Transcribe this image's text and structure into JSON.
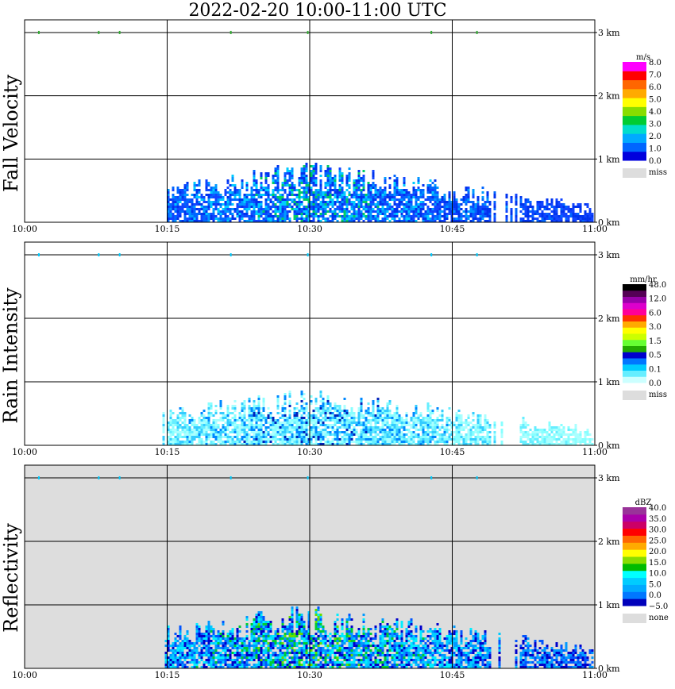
{
  "title": "2022-02-20  10:00-11:00 UTC",
  "chart_data": [
    {
      "type": "heatmap",
      "ylabel": "Fall Velocity",
      "x_ticks": [
        "10:00",
        "10:15",
        "10:30",
        "10:45",
        "11:00"
      ],
      "y_ticks": [
        "0 km",
        "1 km",
        "2 km",
        "3 km"
      ],
      "xlim": [
        "10:00",
        "11:00"
      ],
      "ylim_km": [
        0,
        3.2
      ],
      "grid": true,
      "background": "#ffffff",
      "colorbar": {
        "unit": "m/s",
        "colors": [
          "#0000dd",
          "#0066ff",
          "#00aaff",
          "#00ddcc",
          "#00cc33",
          "#88dd00",
          "#ffff00",
          "#ffaa00",
          "#ff6600",
          "#ff0000",
          "#ff00ff"
        ],
        "labels": [
          "8.0",
          "7.0",
          "6.0",
          "5.0",
          "4.0",
          "3.0",
          "2.0",
          "1.0",
          "0.0"
        ],
        "missing_label": "miss",
        "missing_color": "#dddddd"
      },
      "palette": [
        "#0033ee",
        "#1144ff",
        "#0066ff",
        "#0099ff",
        "#00ccff",
        "#00cc66"
      ],
      "echo": {
        "start_min": 14.5,
        "end_min": 59.8,
        "top_km_range": [
          0.3,
          0.95
        ],
        "peak_min": 30
      }
    },
    {
      "type": "heatmap",
      "ylabel": "Rain Intensity",
      "x_ticks": [
        "10:00",
        "10:15",
        "10:30",
        "10:45",
        "11:00"
      ],
      "y_ticks": [
        "0 km",
        "1 km",
        "2 km",
        "3 km"
      ],
      "xlim": [
        "10:00",
        "11:00"
      ],
      "ylim_km": [
        0,
        3.2
      ],
      "grid": true,
      "background": "#ffffff",
      "colorbar": {
        "unit": "mm/hr",
        "colors": [
          "#ccffff",
          "#66eeff",
          "#00ccff",
          "#0077ff",
          "#0000cc",
          "#22aa00",
          "#66ff33",
          "#ccff00",
          "#ffff00",
          "#ffaa00",
          "#ff3300",
          "#ff0099",
          "#dd00cc",
          "#9900aa",
          "#550055",
          "#000000"
        ],
        "labels": [
          "48.0",
          "12.0",
          "6.0",
          "3.0",
          "1.5",
          "0.5",
          "0.1",
          "0.0"
        ],
        "missing_label": "miss",
        "missing_color": "#dddddd"
      },
      "palette": [
        "#aaffff",
        "#88ffff",
        "#66eeff",
        "#33ccff",
        "#0088ff",
        "#0022bb"
      ],
      "echo": {
        "start_min": 14.5,
        "end_min": 59.8,
        "top_km_range": [
          0.3,
          0.9
        ],
        "peak_min": 30
      }
    },
    {
      "type": "heatmap",
      "ylabel": "Reflectivity",
      "x_ticks": [
        "10:00",
        "10:15",
        "10:30",
        "10:45",
        "11:00"
      ],
      "y_ticks": [
        "0 km",
        "1 km",
        "2 km",
        "3 km"
      ],
      "xlim": [
        "10:00",
        "11:00"
      ],
      "ylim_km": [
        0,
        3.2
      ],
      "grid": true,
      "background": "#dddddd",
      "colorbar": {
        "unit": "dBZ",
        "colors": [
          "#0000bb",
          "#0077ff",
          "#00aaff",
          "#00ccff",
          "#00ffff",
          "#00bb00",
          "#88dd00",
          "#ffff00",
          "#ffaa00",
          "#ff6600",
          "#ff0000",
          "#cc0066",
          "#aa00aa",
          "#993399"
        ],
        "labels": [
          "40.0",
          "35.0",
          "30.0",
          "25.0",
          "20.0",
          "15.0",
          "10.0",
          "5.0",
          "0.0",
          "−5.0"
        ],
        "missing_label": "none",
        "missing_color": "#dddddd"
      },
      "palette": [
        "#0000cc",
        "#0055ff",
        "#0099ff",
        "#00ccff",
        "#00eeff",
        "#00cc33",
        "#66dd00"
      ],
      "echo": {
        "start_min": 14.5,
        "end_min": 59.8,
        "top_km_range": [
          0.35,
          1.0
        ],
        "peak_min": 30
      }
    }
  ]
}
